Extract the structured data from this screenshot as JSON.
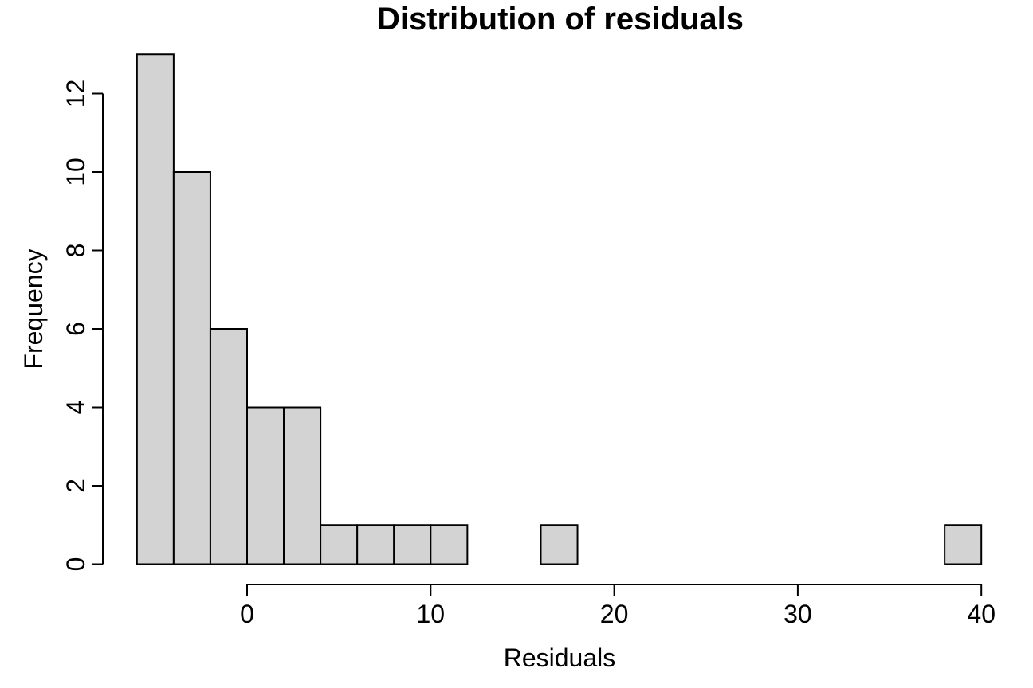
{
  "chart_data": {
    "type": "bar",
    "subtype": "histogram",
    "title": "Distribution of residuals",
    "xlabel": "Residuals",
    "ylabel": "Frequency",
    "bar_color": "#d3d3d3",
    "edge_color": "#000000",
    "bins": [
      {
        "start": -6,
        "end": -4,
        "count": 13
      },
      {
        "start": -4,
        "end": -2,
        "count": 10
      },
      {
        "start": -2,
        "end": 0,
        "count": 6
      },
      {
        "start": 0,
        "end": 2,
        "count": 4
      },
      {
        "start": 2,
        "end": 4,
        "count": 4
      },
      {
        "start": 4,
        "end": 6,
        "count": 1
      },
      {
        "start": 6,
        "end": 8,
        "count": 1
      },
      {
        "start": 8,
        "end": 10,
        "count": 1
      },
      {
        "start": 10,
        "end": 12,
        "count": 1
      },
      {
        "start": 12,
        "end": 14,
        "count": 0
      },
      {
        "start": 14,
        "end": 16,
        "count": 0
      },
      {
        "start": 16,
        "end": 18,
        "count": 1
      },
      {
        "start": 18,
        "end": 20,
        "count": 0
      },
      {
        "start": 20,
        "end": 22,
        "count": 0
      },
      {
        "start": 22,
        "end": 24,
        "count": 0
      },
      {
        "start": 24,
        "end": 26,
        "count": 0
      },
      {
        "start": 26,
        "end": 28,
        "count": 0
      },
      {
        "start": 28,
        "end": 30,
        "count": 0
      },
      {
        "start": 30,
        "end": 32,
        "count": 0
      },
      {
        "start": 32,
        "end": 34,
        "count": 0
      },
      {
        "start": 34,
        "end": 36,
        "count": 0
      },
      {
        "start": 36,
        "end": 38,
        "count": 0
      },
      {
        "start": 38,
        "end": 40,
        "count": 1
      }
    ],
    "xlim": [
      -6,
      40
    ],
    "ylim": [
      0,
      13
    ],
    "x_ticks": [
      0,
      10,
      20,
      30,
      40
    ],
    "y_ticks": [
      0,
      2,
      4,
      6,
      8,
      10,
      12
    ],
    "x_axis_range": [
      0,
      40
    ],
    "y_axis_range": [
      0,
      12
    ],
    "grid": false,
    "legend": false
  }
}
